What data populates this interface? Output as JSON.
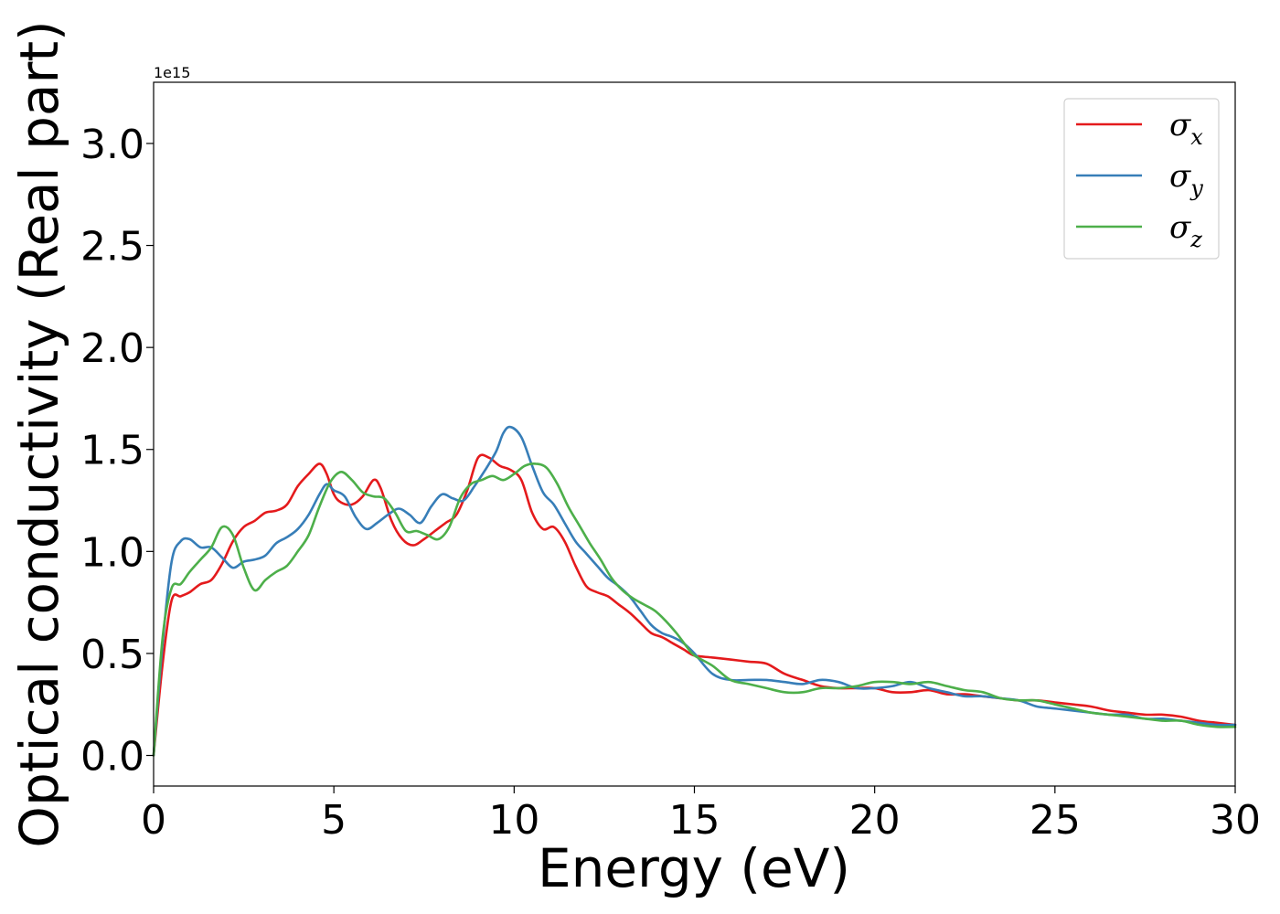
{
  "chart_data": {
    "type": "line",
    "xlabel": "Energy (eV)",
    "ylabel": "Optical conductivity (Real part)",
    "y_offset_label": "1e15",
    "xlim": [
      0,
      30
    ],
    "ylim": [
      -0.15,
      3.3
    ],
    "x_ticks": [
      0,
      5,
      10,
      15,
      20,
      25,
      30
    ],
    "x_tick_labels": [
      "0",
      "5",
      "10",
      "15",
      "20",
      "25",
      "30"
    ],
    "y_ticks": [
      0.0,
      0.5,
      1.0,
      1.5,
      2.0,
      2.5,
      3.0
    ],
    "y_tick_labels": [
      "0.0",
      "0.5",
      "1.0",
      "1.5",
      "2.0",
      "2.5",
      "3.0"
    ],
    "grid": false,
    "legend_position": "top-right",
    "series": [
      {
        "name": "σx",
        "symbol": "σ",
        "subscript": "x",
        "color": "#e41a1c",
        "x": [
          0,
          0.25,
          0.5,
          0.75,
          1.0,
          1.3,
          1.6,
          1.9,
          2.2,
          2.5,
          2.8,
          3.1,
          3.4,
          3.7,
          4.0,
          4.3,
          4.6,
          4.8,
          5.0,
          5.2,
          5.5,
          5.8,
          6.1,
          6.3,
          6.6,
          6.9,
          7.2,
          7.5,
          7.8,
          8.1,
          8.4,
          8.7,
          9.0,
          9.3,
          9.6,
          9.9,
          10.2,
          10.5,
          10.8,
          11.1,
          11.4,
          11.7,
          12.0,
          12.3,
          12.6,
          12.9,
          13.2,
          13.5,
          13.8,
          14.1,
          14.4,
          14.7,
          15.0,
          15.5,
          16.0,
          16.5,
          17.0,
          17.5,
          18.0,
          18.5,
          19.0,
          19.5,
          20.0,
          20.5,
          21.0,
          21.5,
          22.0,
          22.5,
          23.0,
          23.5,
          24.0,
          24.5,
          25.0,
          25.5,
          26.0,
          26.5,
          27.0,
          27.5,
          28.0,
          28.5,
          29.0,
          29.5,
          30.0
        ],
        "y": [
          0.0,
          0.45,
          0.76,
          0.78,
          0.8,
          0.84,
          0.86,
          0.94,
          1.05,
          1.12,
          1.15,
          1.19,
          1.2,
          1.23,
          1.32,
          1.38,
          1.43,
          1.38,
          1.28,
          1.24,
          1.23,
          1.27,
          1.35,
          1.31,
          1.15,
          1.06,
          1.03,
          1.06,
          1.1,
          1.14,
          1.18,
          1.3,
          1.46,
          1.46,
          1.42,
          1.4,
          1.35,
          1.19,
          1.11,
          1.12,
          1.05,
          0.93,
          0.83,
          0.8,
          0.78,
          0.74,
          0.7,
          0.65,
          0.6,
          0.58,
          0.55,
          0.52,
          0.49,
          0.48,
          0.47,
          0.46,
          0.45,
          0.4,
          0.37,
          0.34,
          0.33,
          0.33,
          0.33,
          0.31,
          0.31,
          0.32,
          0.3,
          0.3,
          0.29,
          0.28,
          0.27,
          0.27,
          0.26,
          0.25,
          0.24,
          0.22,
          0.21,
          0.2,
          0.2,
          0.19,
          0.17,
          0.16,
          0.15
        ]
      },
      {
        "name": "σy",
        "symbol": "σ",
        "subscript": "y",
        "color": "#377eb8",
        "x": [
          0,
          0.25,
          0.5,
          0.75,
          1.0,
          1.3,
          1.6,
          1.9,
          2.2,
          2.5,
          2.8,
          3.1,
          3.4,
          3.7,
          4.0,
          4.3,
          4.6,
          4.8,
          5.0,
          5.3,
          5.6,
          5.9,
          6.2,
          6.5,
          6.8,
          7.1,
          7.4,
          7.7,
          8.0,
          8.3,
          8.6,
          8.9,
          9.2,
          9.5,
          9.7,
          9.9,
          10.2,
          10.5,
          10.8,
          11.1,
          11.4,
          11.7,
          12.0,
          12.3,
          12.6,
          12.9,
          13.2,
          13.5,
          13.8,
          14.1,
          14.4,
          14.7,
          15.0,
          15.5,
          16.0,
          16.5,
          17.0,
          17.5,
          18.0,
          18.5,
          19.0,
          19.5,
          20.0,
          20.5,
          21.0,
          21.5,
          22.0,
          22.5,
          23.0,
          23.5,
          24.0,
          24.5,
          25.0,
          25.5,
          26.0,
          26.5,
          27.0,
          27.5,
          28.0,
          28.5,
          29.0,
          29.5,
          30.0
        ],
        "y": [
          0.0,
          0.55,
          0.95,
          1.05,
          1.06,
          1.02,
          1.02,
          0.97,
          0.92,
          0.95,
          0.96,
          0.98,
          1.04,
          1.07,
          1.11,
          1.18,
          1.28,
          1.33,
          1.3,
          1.27,
          1.17,
          1.11,
          1.14,
          1.18,
          1.21,
          1.18,
          1.14,
          1.22,
          1.28,
          1.26,
          1.25,
          1.32,
          1.4,
          1.49,
          1.58,
          1.61,
          1.56,
          1.42,
          1.29,
          1.23,
          1.14,
          1.05,
          0.99,
          0.93,
          0.87,
          0.83,
          0.78,
          0.71,
          0.64,
          0.6,
          0.58,
          0.55,
          0.5,
          0.4,
          0.37,
          0.37,
          0.37,
          0.36,
          0.35,
          0.37,
          0.36,
          0.33,
          0.33,
          0.34,
          0.36,
          0.33,
          0.31,
          0.29,
          0.29,
          0.28,
          0.27,
          0.24,
          0.23,
          0.22,
          0.21,
          0.2,
          0.2,
          0.18,
          0.18,
          0.17,
          0.16,
          0.15,
          0.15
        ]
      },
      {
        "name": "σz",
        "symbol": "σ",
        "subscript": "z",
        "color": "#4daf4a",
        "x": [
          0,
          0.25,
          0.5,
          0.75,
          1.0,
          1.3,
          1.6,
          1.9,
          2.2,
          2.5,
          2.8,
          3.1,
          3.4,
          3.7,
          4.0,
          4.3,
          4.6,
          4.9,
          5.2,
          5.5,
          5.8,
          6.1,
          6.4,
          6.7,
          7.0,
          7.3,
          7.6,
          7.9,
          8.2,
          8.5,
          8.8,
          9.1,
          9.4,
          9.7,
          10.0,
          10.3,
          10.6,
          10.9,
          11.2,
          11.5,
          11.8,
          12.1,
          12.4,
          12.7,
          13.0,
          13.3,
          13.6,
          13.9,
          14.2,
          14.5,
          14.8,
          15.0,
          15.5,
          16.0,
          16.5,
          17.0,
          17.5,
          18.0,
          18.5,
          19.0,
          19.5,
          20.0,
          20.5,
          21.0,
          21.5,
          22.0,
          22.5,
          23.0,
          23.5,
          24.0,
          24.5,
          25.0,
          25.5,
          26.0,
          26.5,
          27.0,
          27.5,
          28.0,
          28.5,
          29.0,
          29.5,
          30.0
        ],
        "y": [
          0.0,
          0.58,
          0.82,
          0.84,
          0.9,
          0.96,
          1.02,
          1.12,
          1.08,
          0.92,
          0.81,
          0.86,
          0.9,
          0.93,
          1.0,
          1.08,
          1.22,
          1.34,
          1.39,
          1.35,
          1.29,
          1.27,
          1.26,
          1.19,
          1.1,
          1.1,
          1.08,
          1.06,
          1.12,
          1.26,
          1.33,
          1.35,
          1.37,
          1.35,
          1.38,
          1.42,
          1.43,
          1.41,
          1.33,
          1.22,
          1.13,
          1.04,
          0.96,
          0.87,
          0.81,
          0.77,
          0.74,
          0.71,
          0.66,
          0.6,
          0.53,
          0.49,
          0.44,
          0.37,
          0.35,
          0.33,
          0.31,
          0.31,
          0.33,
          0.33,
          0.34,
          0.36,
          0.36,
          0.35,
          0.36,
          0.34,
          0.32,
          0.31,
          0.28,
          0.27,
          0.27,
          0.25,
          0.23,
          0.21,
          0.2,
          0.19,
          0.18,
          0.17,
          0.17,
          0.15,
          0.14,
          0.14
        ]
      }
    ]
  }
}
